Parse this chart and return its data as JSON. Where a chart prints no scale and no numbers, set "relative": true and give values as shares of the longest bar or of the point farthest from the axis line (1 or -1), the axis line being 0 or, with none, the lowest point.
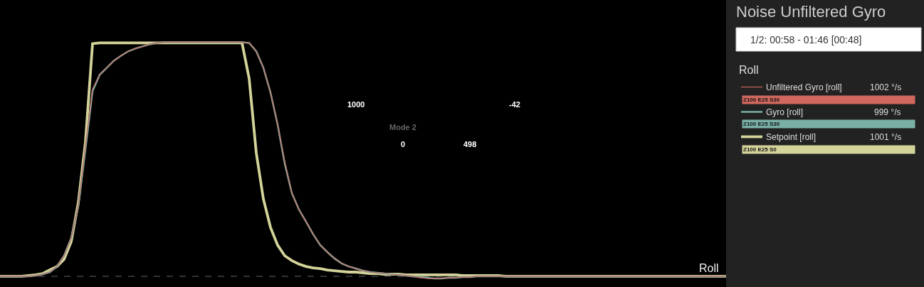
{
  "chart_data": {
    "type": "line",
    "title": "Noise Unfiltered Gyro",
    "relative": true,
    "legend": "right",
    "grid": false,
    "marker": "none",
    "line_style": "solid",
    "categories": [
      null,
      null,
      null,
      null,
      null,
      null,
      null,
      null,
      null,
      null,
      null,
      null,
      null,
      null,
      null,
      null,
      null,
      null,
      null,
      null,
      null,
      null,
      null,
      null,
      null,
      null,
      null,
      null,
      null,
      null,
      null,
      null,
      null,
      null,
      null,
      null,
      null,
      null,
      null,
      null,
      null,
      null,
      null,
      null,
      null,
      null,
      null,
      null,
      null,
      null,
      null,
      null,
      null,
      null,
      null,
      null,
      null,
      null,
      null,
      null,
      null,
      null,
      null,
      null,
      null,
      null,
      null,
      null,
      null,
      null,
      null,
      null,
      null,
      null,
      null,
      null,
      null,
      null,
      null,
      null,
      null,
      null,
      null,
      null,
      null,
      null,
      null,
      null,
      null,
      null,
      null,
      null,
      null,
      null,
      null,
      null,
      null,
      null,
      null,
      null,
      null,
      null,
      null
    ],
    "series": [
      {
        "name": "Unfiltered Gyro [roll]",
        "color": "#d0685e",
        "values": [
          0,
          0,
          0,
          0,
          0,
          0.003,
          0.009,
          0.018,
          0.042,
          0.088,
          0.164,
          0.303,
          0.555,
          0.8,
          0.861,
          0.891,
          0.921,
          0.942,
          0.961,
          0.973,
          0.982,
          0.991,
          0.997,
          1,
          1,
          1,
          1,
          1,
          1,
          1,
          1,
          1,
          1,
          1,
          1,
          0.997,
          0.961,
          0.891,
          0.785,
          0.648,
          0.49,
          0.355,
          0.285,
          0.233,
          0.179,
          0.133,
          0.103,
          0.076,
          0.055,
          0.042,
          0.033,
          0.024,
          0.018,
          0.015,
          0.012,
          0.009,
          0.006,
          0.003,
          0,
          -0.006,
          -0.009,
          -0.009,
          -0.009,
          -0.006,
          -0.006,
          -0.003,
          -0.003,
          0,
          0,
          0,
          0,
          0,
          0,
          0,
          0,
          0,
          0,
          0,
          0,
          0,
          0,
          0,
          0,
          0,
          0,
          0,
          0,
          0,
          0,
          0,
          0,
          0,
          0,
          0,
          0,
          0,
          0,
          0,
          0,
          0,
          0,
          0,
          0
        ]
      },
      {
        "name": "Gyro [roll]",
        "color": "#79b0a5",
        "values": [
          0,
          0,
          0,
          0,
          0,
          0.003,
          0.009,
          0.018,
          0.042,
          0.088,
          0.164,
          0.3,
          0.542,
          0.791,
          0.861,
          0.891,
          0.921,
          0.942,
          0.961,
          0.973,
          0.982,
          0.991,
          0.997,
          1,
          1,
          1,
          1,
          1,
          1,
          1,
          1,
          1,
          1,
          1,
          1,
          0.997,
          0.961,
          0.891,
          0.785,
          0.648,
          0.482,
          0.355,
          0.285,
          0.233,
          0.179,
          0.133,
          0.103,
          0.076,
          0.055,
          0.042,
          0.033,
          0.024,
          0.018,
          0.015,
          0.012,
          0.009,
          0.006,
          0.003,
          0,
          -0.003,
          -0.006,
          -0.009,
          -0.009,
          -0.006,
          -0.006,
          -0.003,
          -0.003,
          0,
          0,
          0,
          0,
          0,
          0,
          0,
          0,
          0,
          0,
          0,
          0,
          0,
          0,
          0,
          0,
          0,
          0,
          0,
          0,
          0,
          0,
          0,
          0,
          0,
          0,
          0,
          0,
          0,
          0,
          0,
          0,
          0,
          0,
          0,
          0
        ]
      },
      {
        "name": "Setpoint [roll]",
        "color": "#d4d39a",
        "values": [
          0,
          0,
          0,
          0,
          0.003,
          0.006,
          0.012,
          0.027,
          0.042,
          0.073,
          0.148,
          0.315,
          0.573,
          0.994,
          0.997,
          0.997,
          0.997,
          0.997,
          0.997,
          0.997,
          0.997,
          0.997,
          0.997,
          0.997,
          0.997,
          0.997,
          0.997,
          0.997,
          0.997,
          0.997,
          0.997,
          0.997,
          0.997,
          0.997,
          0.997,
          0.845,
          0.527,
          0.33,
          0.209,
          0.133,
          0.088,
          0.067,
          0.052,
          0.042,
          0.036,
          0.033,
          0.027,
          0.024,
          0.021,
          0.018,
          0.018,
          0.015,
          0.012,
          0.012,
          0.009,
          0.009,
          0.009,
          0.006,
          0.006,
          0.006,
          0.006,
          0.006,
          0.006,
          0.006,
          0.006,
          0.003,
          0.003,
          0.003,
          0.003,
          0.003,
          0.003,
          0,
          0,
          0,
          0,
          0,
          0,
          0,
          0,
          0,
          0,
          0,
          0,
          0,
          0,
          0,
          0,
          0,
          0,
          0,
          0,
          0,
          0,
          0,
          0,
          0,
          0,
          0,
          0,
          0,
          0,
          0,
          0
        ]
      }
    ],
    "annotations": [
      "1/2: 00:58 - 01:46 [00:48]",
      "Roll",
      "1002 °/s",
      "Z100 E25 S30",
      "999 °/s",
      "Z100 E25 S30",
      "1001 °/s",
      "Z100 E25 S0",
      "Roll",
      "1000",
      "0",
      "Mode 2",
      "498",
      "-42"
    ]
  }
}
